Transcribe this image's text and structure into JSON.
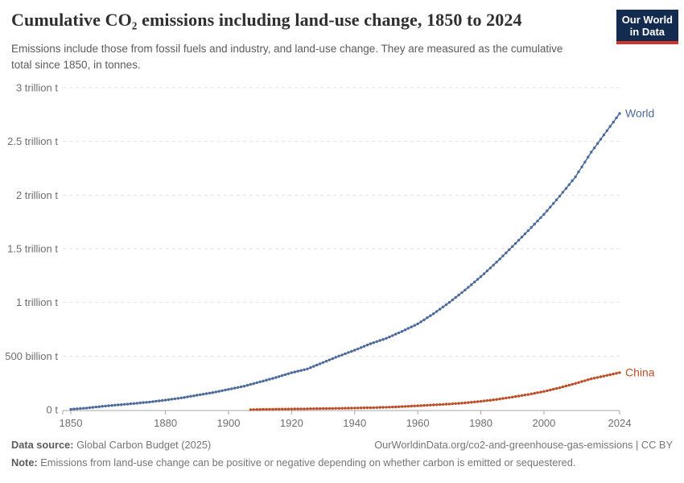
{
  "header": {
    "title": "Cumulative CO₂ emissions including land-use change, 1850 to 2024",
    "subtitle": "Emissions include those from fossil fuels and industry, and land-use change. They are measured as the cumulative total since 1850, in tonnes.",
    "logo": {
      "line1": "Our World",
      "line2": "in Data",
      "bg": "#122B4E",
      "accent": "#D1342B"
    }
  },
  "chart_data": {
    "type": "line",
    "title": "Cumulative CO₂ emissions including land-use change, 1850 to 2024",
    "values_unit": "trillion tonnes of CO₂",
    "markers": true,
    "grid": true,
    "legend_position": "end-of-line labels",
    "x_axis": {
      "range": [
        1850,
        2024
      ],
      "ticks": [
        1850,
        1880,
        1900,
        1920,
        1940,
        1960,
        1980,
        2000,
        2024
      ]
    },
    "y_axis": {
      "range_trillion": [
        0,
        3
      ],
      "ticks": [
        {
          "value": 0,
          "label": "0 t"
        },
        {
          "value": 0.5,
          "label": "500 billion t"
        },
        {
          "value": 1,
          "label": "1 trillion t"
        },
        {
          "value": 1.5,
          "label": "1.5 trillion t"
        },
        {
          "value": 2,
          "label": "2 trillion t"
        },
        {
          "value": 2.5,
          "label": "2.5 trillion t"
        },
        {
          "value": 3,
          "label": "3 trillion t"
        }
      ]
    },
    "series": [
      {
        "name": "World",
        "color": "#4C6A9C",
        "points": [
          [
            1850,
            0.004
          ],
          [
            1855,
            0.016
          ],
          [
            1860,
            0.032
          ],
          [
            1865,
            0.045
          ],
          [
            1870,
            0.058
          ],
          [
            1875,
            0.072
          ],
          [
            1880,
            0.09
          ],
          [
            1885,
            0.11
          ],
          [
            1890,
            0.135
          ],
          [
            1895,
            0.16
          ],
          [
            1900,
            0.19
          ],
          [
            1905,
            0.22
          ],
          [
            1910,
            0.26
          ],
          [
            1915,
            0.3
          ],
          [
            1920,
            0.345
          ],
          [
            1925,
            0.38
          ],
          [
            1930,
            0.44
          ],
          [
            1935,
            0.5
          ],
          [
            1940,
            0.555
          ],
          [
            1945,
            0.615
          ],
          [
            1950,
            0.665
          ],
          [
            1955,
            0.73
          ],
          [
            1960,
            0.8
          ],
          [
            1965,
            0.895
          ],
          [
            1970,
            1.0
          ],
          [
            1975,
            1.115
          ],
          [
            1980,
            1.24
          ],
          [
            1985,
            1.375
          ],
          [
            1990,
            1.52
          ],
          [
            1995,
            1.668
          ],
          [
            2000,
            1.82
          ],
          [
            2005,
            1.99
          ],
          [
            2010,
            2.17
          ],
          [
            2015,
            2.4
          ],
          [
            2020,
            2.6
          ],
          [
            2024,
            2.76
          ]
        ]
      },
      {
        "name": "China",
        "color": "#BE4E27",
        "points": [
          [
            1907,
            0.001
          ],
          [
            1910,
            0.003
          ],
          [
            1915,
            0.005
          ],
          [
            1920,
            0.007
          ],
          [
            1925,
            0.009
          ],
          [
            1930,
            0.011
          ],
          [
            1935,
            0.013
          ],
          [
            1940,
            0.016
          ],
          [
            1945,
            0.019
          ],
          [
            1950,
            0.023
          ],
          [
            1955,
            0.029
          ],
          [
            1960,
            0.037
          ],
          [
            1965,
            0.045
          ],
          [
            1970,
            0.053
          ],
          [
            1975,
            0.064
          ],
          [
            1980,
            0.078
          ],
          [
            1985,
            0.096
          ],
          [
            1990,
            0.118
          ],
          [
            1995,
            0.142
          ],
          [
            2000,
            0.17
          ],
          [
            2005,
            0.205
          ],
          [
            2010,
            0.245
          ],
          [
            2015,
            0.288
          ],
          [
            2020,
            0.32
          ],
          [
            2024,
            0.346
          ]
        ]
      }
    ]
  },
  "footer": {
    "datasource_label": "Data source:",
    "datasource": " Global Carbon Budget (2025)",
    "link": "OurWorldinData.org/co2-and-greenhouse-gas-emissions | CC BY",
    "note_label": "Note:",
    "note": " Emissions from land-use change can be positive or negative depending on whether carbon is emitted or sequestered."
  }
}
